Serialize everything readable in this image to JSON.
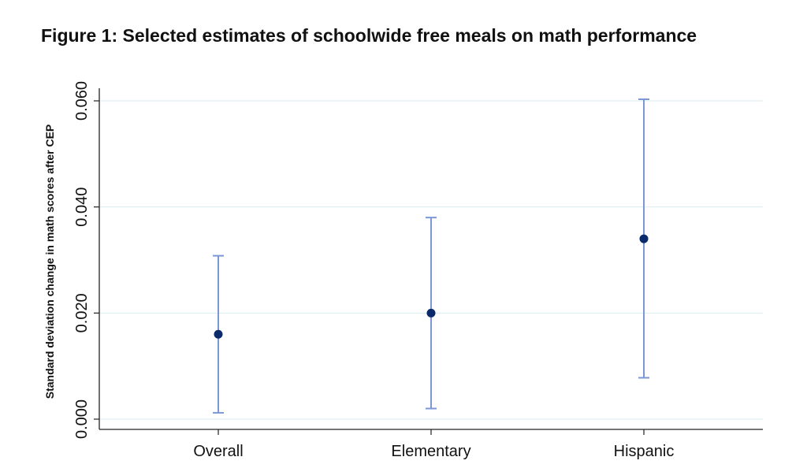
{
  "chart_data": {
    "type": "scatter",
    "title": "Figure 1: Selected estimates of schoolwide free meals on math performance",
    "xlabel": "",
    "ylabel": "Standard deviation change in math scores after CEP",
    "categories": [
      "Overall",
      "Elementary",
      "Hispanic"
    ],
    "series": [
      {
        "values": [
          0.016,
          0.02,
          0.034
        ],
        "ci_low": [
          0.0012,
          0.002,
          0.0078
        ],
        "ci_high": [
          0.0308,
          0.038,
          0.0603
        ]
      }
    ],
    "y_ticks": [
      "0.000",
      "0.020",
      "0.040",
      "0.060"
    ],
    "ylim": [
      0.0,
      0.061
    ],
    "grid": true,
    "legend": "none",
    "colors": {
      "point": "#0b2a6b",
      "error_bar": "#7b97d6",
      "grid": "#d9ecf1",
      "axis": "#222222"
    }
  }
}
